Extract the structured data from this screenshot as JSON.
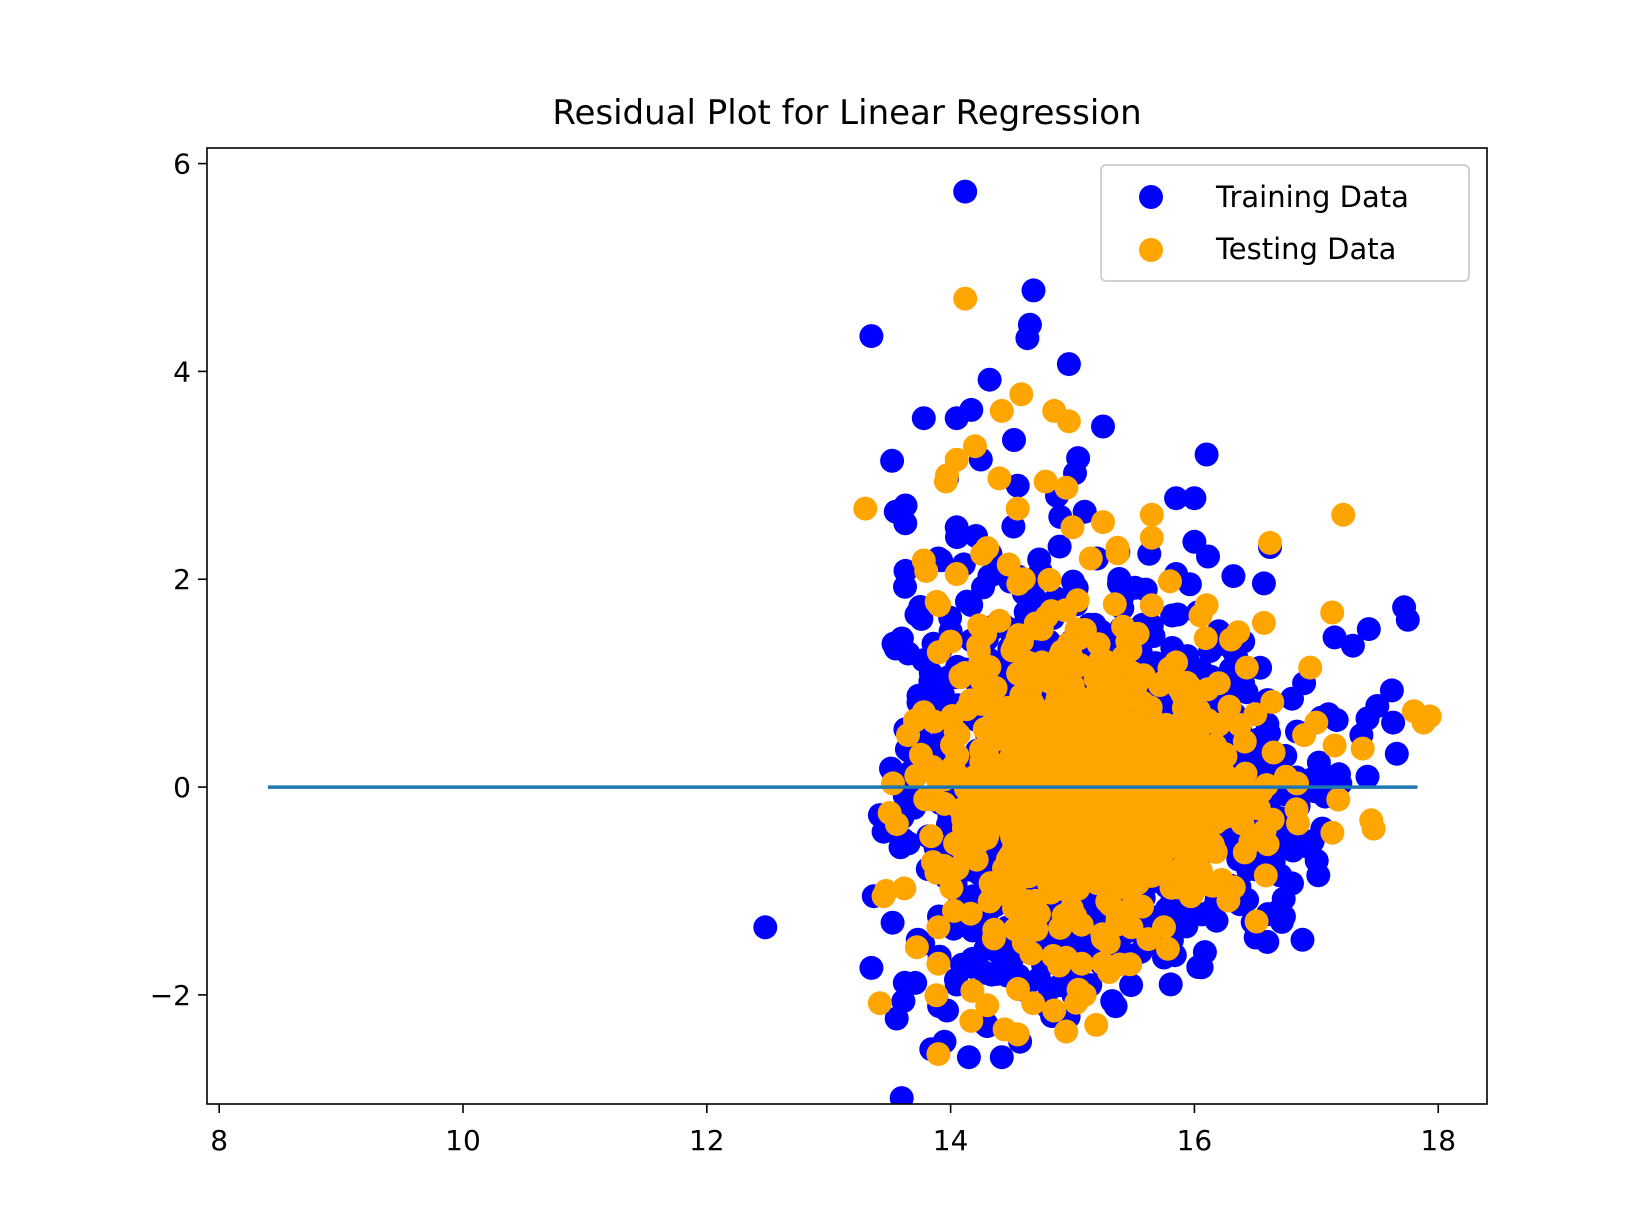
{
  "chart_data": {
    "type": "scatter",
    "title": "Residual Plot for Linear Regression",
    "xlabel": "",
    "ylabel": "",
    "xlim": [
      7.9,
      18.4
    ],
    "ylim": [
      -3.05,
      6.15
    ],
    "xticks": [
      8,
      10,
      12,
      14,
      16,
      18
    ],
    "yticks": [
      -2,
      0,
      2,
      4,
      6
    ],
    "ytick_labels": [
      "−2",
      "0",
      "2",
      "4",
      "6"
    ],
    "grid": false,
    "legend_position": "upper right",
    "hline": {
      "y": 0,
      "xmin": 8.4,
      "xmax": 17.83,
      "color": "#1f77b4"
    },
    "series": [
      {
        "name": "Training Data",
        "color": "#0000ff",
        "points": [
          [
            14.12,
            5.73
          ],
          [
            14.68,
            4.78
          ],
          [
            14.65,
            4.45
          ],
          [
            14.63,
            4.32
          ],
          [
            13.35,
            4.34
          ],
          [
            14.97,
            4.07
          ],
          [
            14.32,
            3.92
          ],
          [
            15.25,
            3.47
          ],
          [
            14.17,
            3.63
          ],
          [
            14.05,
            3.55
          ],
          [
            13.78,
            3.55
          ],
          [
            14.52,
            3.34
          ],
          [
            15.02,
            3.02
          ],
          [
            16.1,
            3.2
          ],
          [
            13.52,
            3.14
          ],
          [
            15.85,
            2.78
          ],
          [
            16.0,
            2.78
          ],
          [
            13.55,
            2.65
          ],
          [
            13.63,
            2.71
          ],
          [
            13.97,
            2.97
          ],
          [
            16.0,
            2.36
          ],
          [
            16.32,
            2.03
          ],
          [
            16.62,
            2.31
          ],
          [
            16.57,
            1.96
          ],
          [
            17.72,
            1.73
          ],
          [
            17.75,
            1.61
          ],
          [
            17.43,
            1.52
          ],
          [
            17.3,
            1.36
          ],
          [
            17.15,
            1.44
          ],
          [
            17.62,
            0.93
          ],
          [
            17.5,
            0.78
          ],
          [
            17.42,
            0.66
          ],
          [
            17.37,
            0.5
          ],
          [
            17.63,
            0.62
          ],
          [
            17.66,
            0.32
          ],
          [
            17.42,
            0.1
          ],
          [
            13.63,
            2.08
          ],
          [
            13.72,
            1.66
          ],
          [
            13.6,
            1.43
          ],
          [
            13.52,
            0.16
          ],
          [
            13.42,
            -0.27
          ],
          [
            13.45,
            -0.43
          ],
          [
            13.37,
            -1.05
          ],
          [
            13.35,
            -1.74
          ],
          [
            12.48,
            -1.35
          ],
          [
            13.97,
            -2.15
          ],
          [
            13.95,
            -2.45
          ],
          [
            14.15,
            -2.6
          ],
          [
            14.42,
            -2.6
          ],
          [
            14.57,
            -2.45
          ],
          [
            14.8,
            -2.12
          ],
          [
            15.45,
            -1.62
          ],
          [
            15.72,
            -1.48
          ],
          [
            16.18,
            -1.1
          ],
          [
            16.3,
            -0.95
          ],
          [
            16.65,
            -0.72
          ],
          [
            16.97,
            -0.52
          ],
          [
            17.05,
            -0.4
          ],
          [
            14.05,
            -1.9
          ],
          [
            14.3,
            -2.3
          ],
          [
            16.8,
            0.85
          ],
          [
            16.9,
            1.0
          ],
          [
            17.1,
            0.7
          ],
          [
            16.4,
            1.4
          ],
          [
            16.2,
            1.5
          ],
          [
            15.6,
            1.9
          ],
          [
            15.85,
            2.05
          ],
          [
            15.2,
            2.2
          ],
          [
            14.9,
            2.6
          ],
          [
            15.1,
            2.65
          ],
          [
            14.05,
            2.5
          ],
          [
            14.55,
            2.9
          ],
          [
            13.9,
            2.2
          ],
          [
            14.0,
            1.5
          ],
          [
            13.8,
            0.9
          ],
          [
            13.85,
            0.3
          ],
          [
            13.7,
            -0.2
          ],
          [
            13.9,
            -0.7
          ],
          [
            14.1,
            -1.1
          ],
          [
            14.4,
            -1.6
          ],
          [
            14.3,
            0.5
          ],
          [
            14.6,
            1.0
          ],
          [
            14.8,
            0.1
          ],
          [
            15.0,
            -0.5
          ],
          [
            15.3,
            -1.0
          ],
          [
            15.2,
            0.8
          ],
          [
            15.5,
            0.3
          ],
          [
            15.8,
            -0.4
          ],
          [
            16.0,
            0.5
          ],
          [
            16.5,
            0.2
          ],
          [
            16.7,
            -0.3
          ],
          [
            16.3,
            0.9
          ],
          [
            15.6,
            1.2
          ],
          [
            14.7,
            1.8
          ],
          [
            14.2,
            1.1
          ],
          [
            14.2,
            -0.3
          ],
          [
            14.5,
            -0.9
          ],
          [
            15.0,
            -1.3
          ],
          [
            15.9,
            -0.9
          ],
          [
            16.1,
            -0.2
          ]
        ]
      },
      {
        "name": "Testing Data",
        "color": "#ffa500",
        "points": [
          [
            14.12,
            4.7
          ],
          [
            14.58,
            3.78
          ],
          [
            14.42,
            3.62
          ],
          [
            14.85,
            3.62
          ],
          [
            14.97,
            3.52
          ],
          [
            14.2,
            3.28
          ],
          [
            14.05,
            3.15
          ],
          [
            13.97,
            3.0
          ],
          [
            14.78,
            2.94
          ],
          [
            14.95,
            2.88
          ],
          [
            14.4,
            2.97
          ],
          [
            13.3,
            2.68
          ],
          [
            14.55,
            2.68
          ],
          [
            15.25,
            2.55
          ],
          [
            15.0,
            2.5
          ],
          [
            15.65,
            2.62
          ],
          [
            15.65,
            2.4
          ],
          [
            17.22,
            2.62
          ],
          [
            16.62,
            2.35
          ],
          [
            15.37,
            2.25
          ],
          [
            13.78,
            2.18
          ],
          [
            13.8,
            2.08
          ],
          [
            14.05,
            2.05
          ],
          [
            15.15,
            2.2
          ],
          [
            15.8,
            1.98
          ],
          [
            15.65,
            1.75
          ],
          [
            16.05,
            1.65
          ],
          [
            16.1,
            1.75
          ],
          [
            17.13,
            1.68
          ],
          [
            16.57,
            1.58
          ],
          [
            16.3,
            1.42
          ],
          [
            16.43,
            1.15
          ],
          [
            16.95,
            1.15
          ],
          [
            17.8,
            0.73
          ],
          [
            17.88,
            0.62
          ],
          [
            17.93,
            0.68
          ],
          [
            17.0,
            0.62
          ],
          [
            17.38,
            0.37
          ],
          [
            17.15,
            0.4
          ],
          [
            17.45,
            -0.32
          ],
          [
            17.47,
            -0.4
          ],
          [
            17.18,
            -0.12
          ],
          [
            13.78,
            0.72
          ],
          [
            13.65,
            0.5
          ],
          [
            13.5,
            -0.25
          ],
          [
            13.47,
            -1.0
          ],
          [
            13.45,
            -1.05
          ],
          [
            13.42,
            -2.08
          ],
          [
            13.9,
            -1.35
          ],
          [
            13.9,
            -1.7
          ],
          [
            13.9,
            -2.57
          ],
          [
            14.17,
            -2.25
          ],
          [
            14.3,
            -2.1
          ],
          [
            14.55,
            -2.38
          ],
          [
            14.85,
            -2.15
          ],
          [
            15.05,
            -1.95
          ],
          [
            15.1,
            -2.0
          ],
          [
            15.3,
            -1.78
          ],
          [
            15.75,
            -1.35
          ],
          [
            16.15,
            -0.95
          ],
          [
            16.6,
            -0.55
          ],
          [
            16.85,
            -0.35
          ],
          [
            14.0,
            1.4
          ],
          [
            13.95,
            0.1
          ],
          [
            14.1,
            -0.6
          ],
          [
            14.35,
            -1.0
          ],
          [
            14.6,
            -1.5
          ],
          [
            14.25,
            0.8
          ],
          [
            14.5,
            0.3
          ],
          [
            14.75,
            1.2
          ],
          [
            14.9,
            -0.2
          ],
          [
            15.1,
            0.6
          ],
          [
            15.35,
            1.0
          ],
          [
            15.5,
            -0.3
          ],
          [
            15.7,
            0.4
          ],
          [
            15.9,
            0.9
          ],
          [
            16.0,
            -0.5
          ],
          [
            16.25,
            0.3
          ],
          [
            16.5,
            0.7
          ],
          [
            16.75,
            0.1
          ],
          [
            16.9,
            0.5
          ],
          [
            15.2,
            -0.9
          ],
          [
            14.8,
            -0.8
          ],
          [
            14.4,
            1.6
          ],
          [
            14.7,
            0.6
          ],
          [
            15.45,
            1.4
          ],
          [
            15.85,
            1.2
          ],
          [
            16.2,
            1.0
          ],
          [
            14.3,
            2.3
          ],
          [
            14.6,
            2.0
          ]
        ]
      }
    ]
  },
  "legend": {
    "items": [
      {
        "label": "Training Data",
        "color": "#0000ff"
      },
      {
        "label": "Testing Data",
        "color": "#ffa500"
      }
    ]
  }
}
